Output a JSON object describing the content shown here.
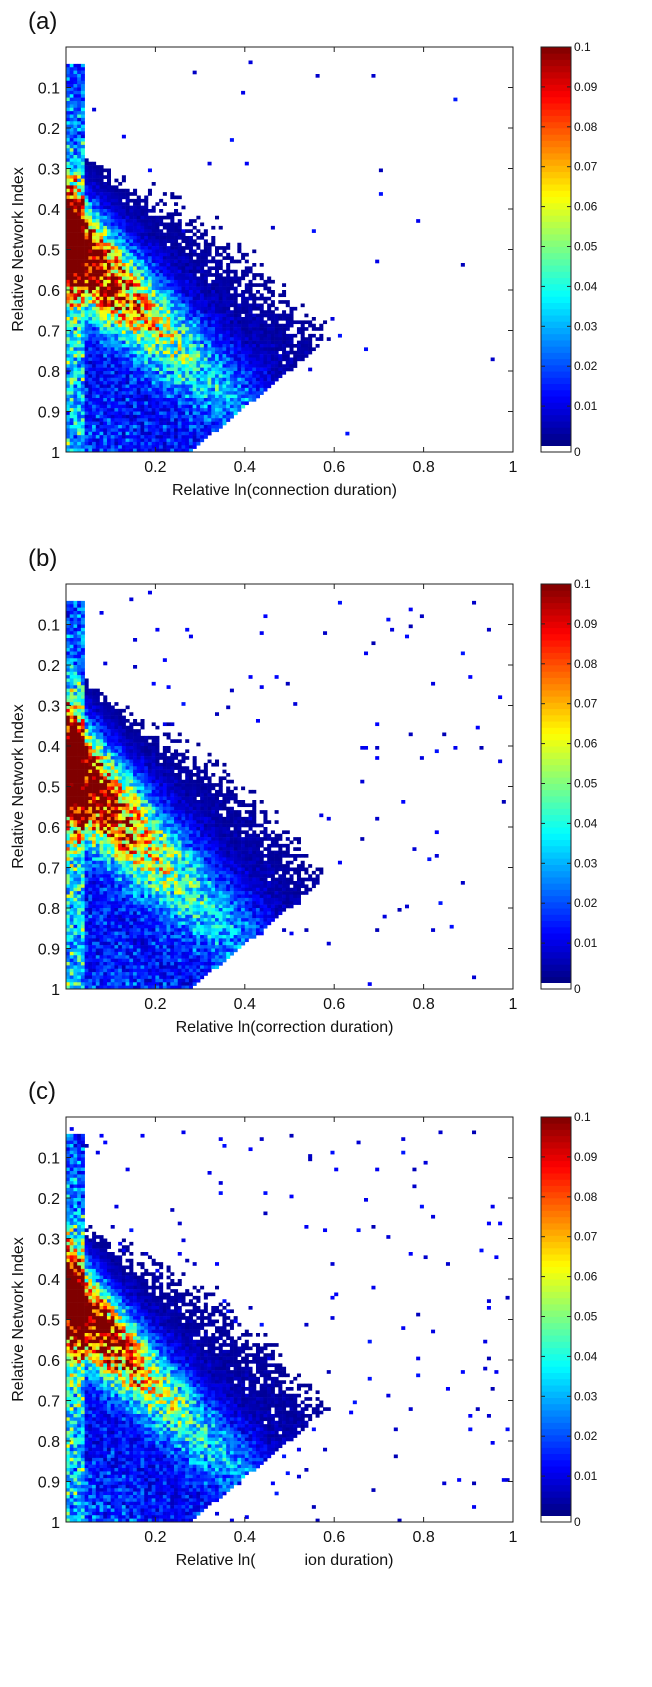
{
  "chart_data": [
    {
      "type": "heatmap",
      "panel_label": "(a)",
      "xlabel": "Relative ln(connection duration)",
      "ylabel": "Relative Network Index",
      "xlim": [
        0,
        1
      ],
      "ylim": [
        1,
        0
      ],
      "x_ticks": [
        "0.2",
        "0.4",
        "0.6",
        "0.8",
        "1"
      ],
      "y_ticks": [
        "0.1",
        "0.2",
        "0.3",
        "0.4",
        "0.5",
        "0.6",
        "0.7",
        "0.8",
        "0.9",
        "1"
      ],
      "colorbar": {
        "range": [
          0,
          0.1
        ],
        "ticks": [
          "0",
          "0.01",
          "0.02",
          "0.03",
          "0.04",
          "0.05",
          "0.06",
          "0.07",
          "0.08",
          "0.09",
          "0.1"
        ]
      },
      "distribution": {
        "ridge_y_at_x0": 0.47,
        "ridge_slope": 1.05,
        "ridge_width": 0.11,
        "diag_y_at_x0": 1.03,
        "diag_slope": -0.7,
        "left_column_x": 0.015,
        "outlier_count": 0.3
      }
    },
    {
      "type": "heatmap",
      "panel_label": "(b)",
      "xlabel": "Relative ln(correction duration)",
      "ylabel": "Relative Network Index",
      "xlim": [
        0,
        1
      ],
      "ylim": [
        1,
        0
      ],
      "x_ticks": [
        "0.2",
        "0.4",
        "0.6",
        "0.8",
        "1"
      ],
      "y_ticks": [
        "0.1",
        "0.2",
        "0.3",
        "0.4",
        "0.5",
        "0.6",
        "0.7",
        "0.8",
        "0.9",
        "1"
      ],
      "colorbar": {
        "range": [
          0,
          0.1
        ],
        "ticks": [
          "0",
          "0.01",
          "0.02",
          "0.03",
          "0.04",
          "0.05",
          "0.06",
          "0.07",
          "0.08",
          "0.09",
          "0.1"
        ]
      },
      "distribution": {
        "ridge_y_at_x0": 0.44,
        "ridge_slope": 1.1,
        "ridge_width": 0.12,
        "diag_y_at_x0": 1.05,
        "diag_slope": -0.6,
        "left_column_x": 0.015,
        "outlier_count": 1.0
      }
    },
    {
      "type": "heatmap",
      "panel_label": "(c)",
      "xlabel": "Relative ln(           ion duration)",
      "ylabel": "Relative Network Index",
      "xlim": [
        0,
        1
      ],
      "ylim": [
        1,
        0
      ],
      "x_ticks": [
        "0.2",
        "0.4",
        "0.6",
        "0.8",
        "1"
      ],
      "y_ticks": [
        "0.1",
        "0.2",
        "0.3",
        "0.4",
        "0.5",
        "0.6",
        "0.7",
        "0.8",
        "0.9",
        "1"
      ],
      "colorbar": {
        "range": [
          0,
          0.1
        ],
        "ticks": [
          "0",
          "0.01",
          "0.02",
          "0.03",
          "0.04",
          "0.05",
          "0.06",
          "0.07",
          "0.08",
          "0.09",
          "0.1"
        ]
      },
      "distribution": {
        "ridge_y_at_x0": 0.44,
        "ridge_slope": 1.1,
        "ridge_width": 0.1,
        "diag_y_at_x0": 1.05,
        "diag_slope": -0.55,
        "left_column_x": 0.015,
        "outlier_count": 1.6
      }
    }
  ]
}
